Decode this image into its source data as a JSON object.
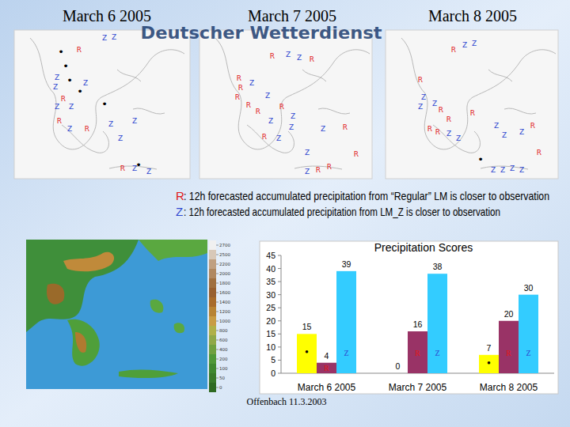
{
  "header": {
    "dates": [
      "March 6 2005",
      "March 7 2005",
      "March 8 2005"
    ]
  },
  "watermark": "Deutscher Wetterdienst",
  "maps": [
    {
      "markers": [
        "Z",
        "Z",
        "R",
        "•",
        "•",
        "Z",
        "•",
        "Z",
        "•",
        "Z",
        "R",
        "•",
        "Z",
        "Z",
        "R",
        "Z",
        "R",
        "Z",
        "Z",
        "Z",
        "R",
        "Z",
        "•",
        "Z"
      ]
    },
    {
      "markers": [
        "R",
        "Z",
        "Z",
        "R",
        "R",
        "R",
        "Z",
        "R",
        "R",
        "R",
        "Z",
        "R",
        "Z",
        "Z",
        "Z",
        "R",
        "Z",
        "Z",
        "Z",
        "R",
        "R",
        "Z",
        "R",
        "R"
      ]
    },
    {
      "markers": [
        "R",
        "Z",
        "Z",
        "R",
        "Z",
        "Z",
        "R",
        "Z",
        "R",
        "R",
        "R",
        "R",
        "Z",
        "Z",
        "Z",
        "Z",
        "Z",
        "R",
        "R",
        "•",
        "Z",
        "Z",
        "Z",
        "Z"
      ]
    }
  ],
  "legend_lines": [
    {
      "key": "R",
      "text": ": 12h forecasted accumulated precipitation from “Regular” LM is closer to observation"
    },
    {
      "key": "Z",
      "text": ": 12h forecasted accumulated precipitation from LM_Z is closer to observation"
    }
  ],
  "relief_map": {
    "colorbar_ticks": [
      2700,
      2500,
      2200,
      2000,
      1800,
      1600,
      1400,
      1200,
      1000,
      800,
      600,
      400,
      200,
      100,
      50,
      0
    ]
  },
  "footer": "Offenbach 11.3.2003",
  "chart_data": {
    "type": "bar",
    "title": "Precipitation Scores",
    "categories": [
      "March 6 2005",
      "March 7 2005",
      "March 8 2005"
    ],
    "series": [
      {
        "name": "•",
        "color": "#ffff00",
        "values": [
          15,
          0,
          7
        ]
      },
      {
        "name": "R",
        "color": "#993366",
        "values": [
          4,
          16,
          20
        ]
      },
      {
        "name": "Z",
        "color": "#33ccff",
        "values": [
          39,
          38,
          30
        ]
      }
    ],
    "ylim": [
      0,
      45
    ],
    "yticks": [
      0,
      5,
      10,
      15,
      20,
      25,
      30,
      35,
      40,
      45
    ],
    "grid": false,
    "data_labels": true
  }
}
